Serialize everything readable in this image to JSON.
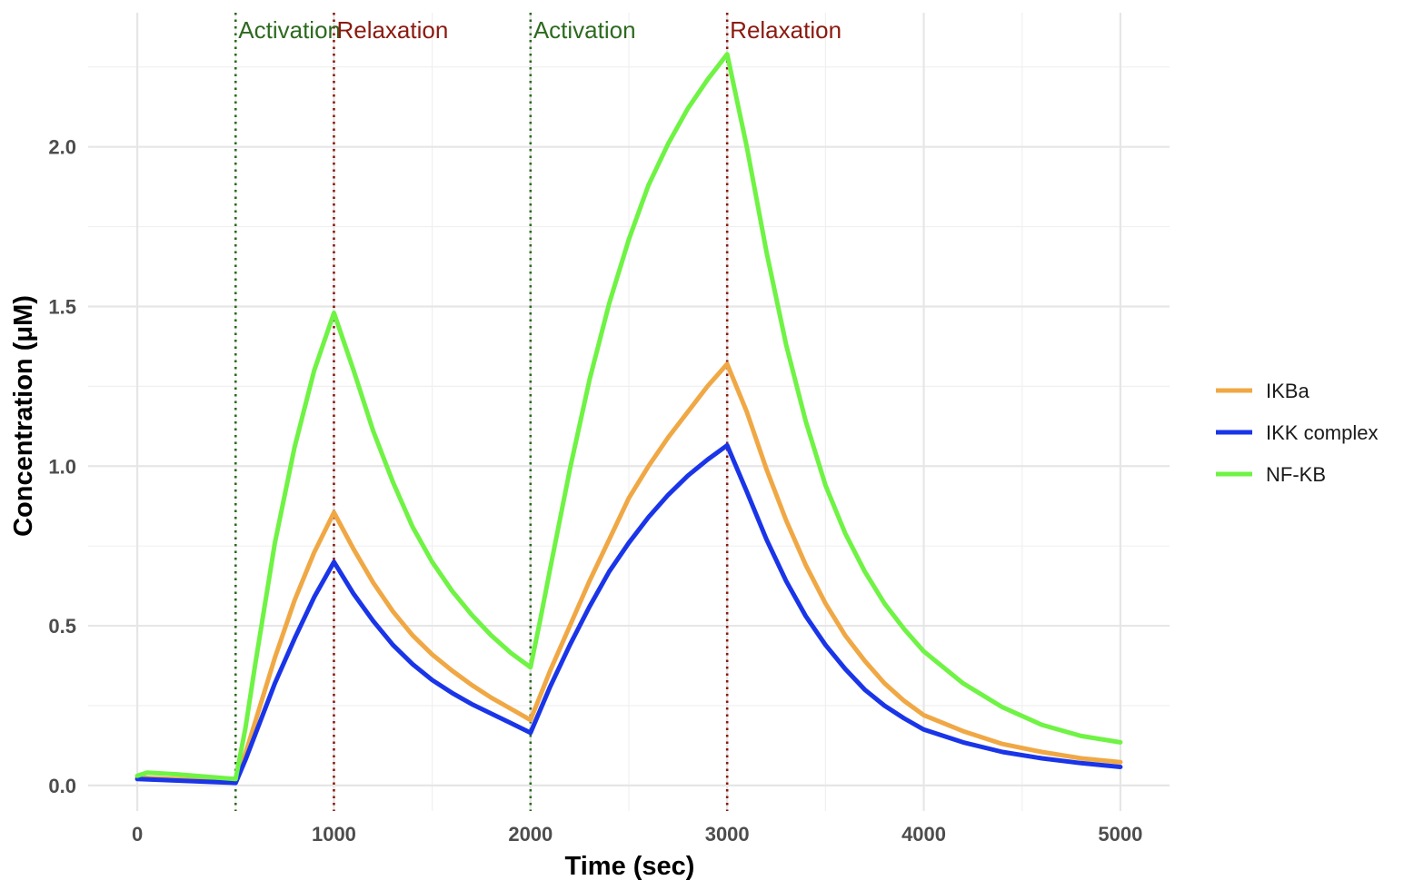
{
  "chart_data": {
    "type": "line",
    "title": "",
    "xlabel": "Time (sec)",
    "ylabel": "Concentration (μM)",
    "xlim": [
      -250,
      5250
    ],
    "ylim": [
      -0.08,
      2.42
    ],
    "x_ticks": [
      0,
      1000,
      2000,
      3000,
      4000,
      5000
    ],
    "x_tick_labels": [
      "0",
      "1000",
      "2000",
      "3000",
      "4000",
      "5000"
    ],
    "y_ticks": [
      0.0,
      0.5,
      1.0,
      1.5,
      2.0
    ],
    "y_tick_labels": [
      "0.0",
      "0.5",
      "1.0",
      "1.5",
      "2.0"
    ],
    "x_minor": [
      500,
      1500,
      2500,
      3500,
      4500
    ],
    "y_minor": [
      0.25,
      0.75,
      1.25,
      1.75,
      2.25
    ],
    "grid": true,
    "legend_position": "right",
    "series": [
      {
        "name": "IKBa",
        "color": "#F0A845",
        "points": [
          [
            0,
            0.025
          ],
          [
            500,
            0.012
          ],
          [
            550,
            0.1
          ],
          [
            600,
            0.2
          ],
          [
            700,
            0.4
          ],
          [
            800,
            0.58
          ],
          [
            900,
            0.73
          ],
          [
            1000,
            0.855
          ],
          [
            1100,
            0.74
          ],
          [
            1200,
            0.635
          ],
          [
            1300,
            0.545
          ],
          [
            1400,
            0.47
          ],
          [
            1500,
            0.41
          ],
          [
            1600,
            0.36
          ],
          [
            1700,
            0.315
          ],
          [
            1800,
            0.275
          ],
          [
            1900,
            0.24
          ],
          [
            2000,
            0.205
          ],
          [
            2100,
            0.36
          ],
          [
            2200,
            0.5
          ],
          [
            2300,
            0.64
          ],
          [
            2400,
            0.77
          ],
          [
            2500,
            0.9
          ],
          [
            2600,
            1.0
          ],
          [
            2700,
            1.09
          ],
          [
            2800,
            1.17
          ],
          [
            2900,
            1.25
          ],
          [
            3000,
            1.32
          ],
          [
            3100,
            1.17
          ],
          [
            3200,
            0.99
          ],
          [
            3300,
            0.83
          ],
          [
            3400,
            0.69
          ],
          [
            3500,
            0.57
          ],
          [
            3600,
            0.47
          ],
          [
            3700,
            0.39
          ],
          [
            3800,
            0.32
          ],
          [
            3900,
            0.265
          ],
          [
            4000,
            0.22
          ],
          [
            4200,
            0.17
          ],
          [
            4400,
            0.13
          ],
          [
            4600,
            0.105
          ],
          [
            4800,
            0.085
          ],
          [
            5000,
            0.073
          ]
        ]
      },
      {
        "name": "IKK complex",
        "color": "#1A35E8",
        "points": [
          [
            0,
            0.02
          ],
          [
            500,
            0.008
          ],
          [
            550,
            0.08
          ],
          [
            600,
            0.16
          ],
          [
            700,
            0.32
          ],
          [
            800,
            0.46
          ],
          [
            900,
            0.59
          ],
          [
            1000,
            0.7
          ],
          [
            1100,
            0.6
          ],
          [
            1200,
            0.515
          ],
          [
            1300,
            0.44
          ],
          [
            1400,
            0.38
          ],
          [
            1500,
            0.33
          ],
          [
            1600,
            0.29
          ],
          [
            1700,
            0.255
          ],
          [
            1800,
            0.225
          ],
          [
            1900,
            0.195
          ],
          [
            2000,
            0.165
          ],
          [
            2100,
            0.31
          ],
          [
            2200,
            0.44
          ],
          [
            2300,
            0.56
          ],
          [
            2400,
            0.67
          ],
          [
            2500,
            0.76
          ],
          [
            2600,
            0.84
          ],
          [
            2700,
            0.91
          ],
          [
            2800,
            0.97
          ],
          [
            2900,
            1.02
          ],
          [
            3000,
            1.065
          ],
          [
            3100,
            0.92
          ],
          [
            3200,
            0.77
          ],
          [
            3300,
            0.64
          ],
          [
            3400,
            0.53
          ],
          [
            3500,
            0.44
          ],
          [
            3600,
            0.365
          ],
          [
            3700,
            0.3
          ],
          [
            3800,
            0.25
          ],
          [
            3900,
            0.21
          ],
          [
            4000,
            0.175
          ],
          [
            4200,
            0.135
          ],
          [
            4400,
            0.105
          ],
          [
            4600,
            0.085
          ],
          [
            4800,
            0.07
          ],
          [
            5000,
            0.058
          ]
        ]
      },
      {
        "name": "NF-KB",
        "color": "#6FF344",
        "points": [
          [
            0,
            0.03
          ],
          [
            50,
            0.04
          ],
          [
            200,
            0.035
          ],
          [
            500,
            0.02
          ],
          [
            550,
            0.18
          ],
          [
            600,
            0.38
          ],
          [
            700,
            0.76
          ],
          [
            800,
            1.06
          ],
          [
            900,
            1.3
          ],
          [
            1000,
            1.48
          ],
          [
            1100,
            1.3
          ],
          [
            1200,
            1.11
          ],
          [
            1300,
            0.95
          ],
          [
            1400,
            0.81
          ],
          [
            1500,
            0.7
          ],
          [
            1600,
            0.61
          ],
          [
            1700,
            0.535
          ],
          [
            1800,
            0.47
          ],
          [
            1900,
            0.415
          ],
          [
            2000,
            0.37
          ],
          [
            2050,
            0.52
          ],
          [
            2100,
            0.68
          ],
          [
            2200,
            0.99
          ],
          [
            2300,
            1.27
          ],
          [
            2400,
            1.51
          ],
          [
            2500,
            1.71
          ],
          [
            2600,
            1.88
          ],
          [
            2700,
            2.01
          ],
          [
            2800,
            2.12
          ],
          [
            2900,
            2.21
          ],
          [
            3000,
            2.29
          ],
          [
            3100,
            2.0
          ],
          [
            3200,
            1.67
          ],
          [
            3300,
            1.38
          ],
          [
            3400,
            1.14
          ],
          [
            3500,
            0.94
          ],
          [
            3600,
            0.79
          ],
          [
            3700,
            0.67
          ],
          [
            3800,
            0.57
          ],
          [
            3900,
            0.49
          ],
          [
            4000,
            0.42
          ],
          [
            4200,
            0.32
          ],
          [
            4400,
            0.245
          ],
          [
            4600,
            0.19
          ],
          [
            4800,
            0.155
          ],
          [
            5000,
            0.135
          ]
        ]
      }
    ],
    "annotations": [
      {
        "x": 500,
        "label": "Activation",
        "color": "#2D6A1F"
      },
      {
        "x": 1000,
        "label": "Relaxation",
        "color": "#8B1A10"
      },
      {
        "x": 2000,
        "label": "Activation",
        "color": "#2D6A1F"
      },
      {
        "x": 3000,
        "label": "Relaxation",
        "color": "#8B1A10"
      }
    ]
  }
}
